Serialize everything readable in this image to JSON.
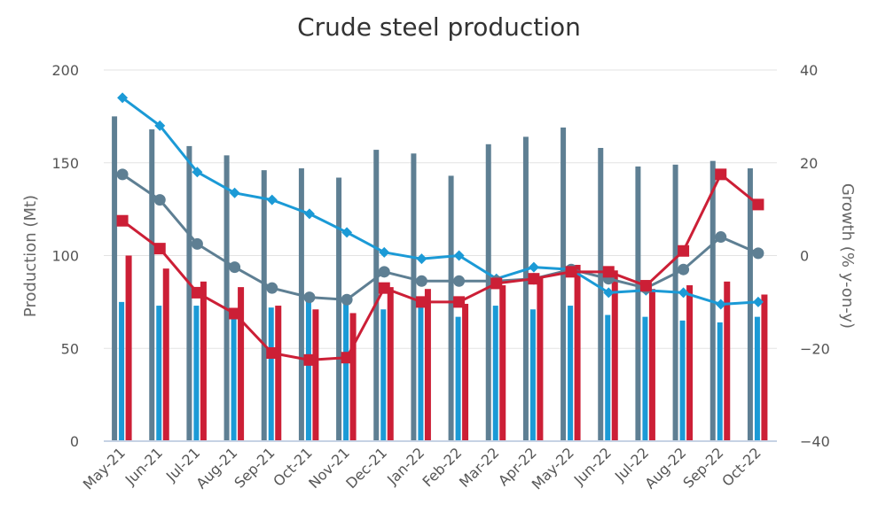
{
  "chart_data": {
    "type": "bar+line",
    "title": "Crude steel production",
    "ylabel": "Production (Mt)",
    "y2label": "Growth (% y-on-y)",
    "ylim": [
      0,
      200
    ],
    "y2lim": [
      -40,
      40
    ],
    "yticks": [
      "0",
      "50",
      "100",
      "150",
      "200"
    ],
    "y2ticks": [
      "−40",
      "−20",
      "0",
      "20",
      "40"
    ],
    "grid": true,
    "legend": "none",
    "categories": [
      "May-21",
      "Jun-21",
      "Jul-21",
      "Aug-21",
      "Sep-21",
      "Oct-21",
      "Nov-21",
      "Dec-21",
      "Jan-22",
      "Feb-22",
      "Mar-22",
      "Apr-22",
      "May-22",
      "Jun-22",
      "Jul-22",
      "Aug-22",
      "Sep-22",
      "Oct-22"
    ],
    "bar_series": [
      {
        "color": "#5e7f93",
        "values": [
          175,
          168,
          159,
          154,
          146,
          147,
          142,
          157,
          155,
          143,
          160,
          164,
          169,
          158,
          148,
          149,
          151,
          147
        ]
      },
      {
        "color": "#1b9ad6",
        "values": [
          75,
          73,
          73,
          67,
          72,
          76,
          75,
          71,
          73,
          67,
          73,
          71,
          73,
          68,
          67,
          65,
          64,
          67
        ]
      },
      {
        "color": "#cc1f36",
        "values": [
          100,
          93,
          86,
          83,
          73,
          71,
          69,
          83,
          82,
          74,
          84,
          88,
          95,
          92,
          82,
          84,
          86,
          79
        ]
      }
    ],
    "line_series": [
      {
        "color": "#1b9ad6",
        "marker": "diamond",
        "axis": "y2",
        "values": [
          34,
          28,
          18,
          13.5,
          12,
          9,
          5,
          0.7,
          -0.7,
          0,
          -5,
          -2.5,
          -3,
          -8,
          -7.5,
          -8,
          -10.5,
          -10
        ]
      },
      {
        "color": "#5e7f93",
        "marker": "circle",
        "axis": "y2",
        "values": [
          17.5,
          12,
          2.5,
          -2.5,
          -7,
          -9,
          -9.5,
          -3.5,
          -5.5,
          -5.5,
          -5.5,
          -5,
          -3,
          -5,
          -7,
          -3,
          4,
          0.5
        ]
      },
      {
        "color": "#cc1f36",
        "marker": "square",
        "axis": "y2",
        "values": [
          7.5,
          1.5,
          -8,
          -12.5,
          -21,
          -22.5,
          -22,
          -7,
          -10,
          -10,
          -6,
          -5,
          -3.5,
          -3.5,
          -6.5,
          1,
          17.5,
          11
        ]
      }
    ]
  }
}
